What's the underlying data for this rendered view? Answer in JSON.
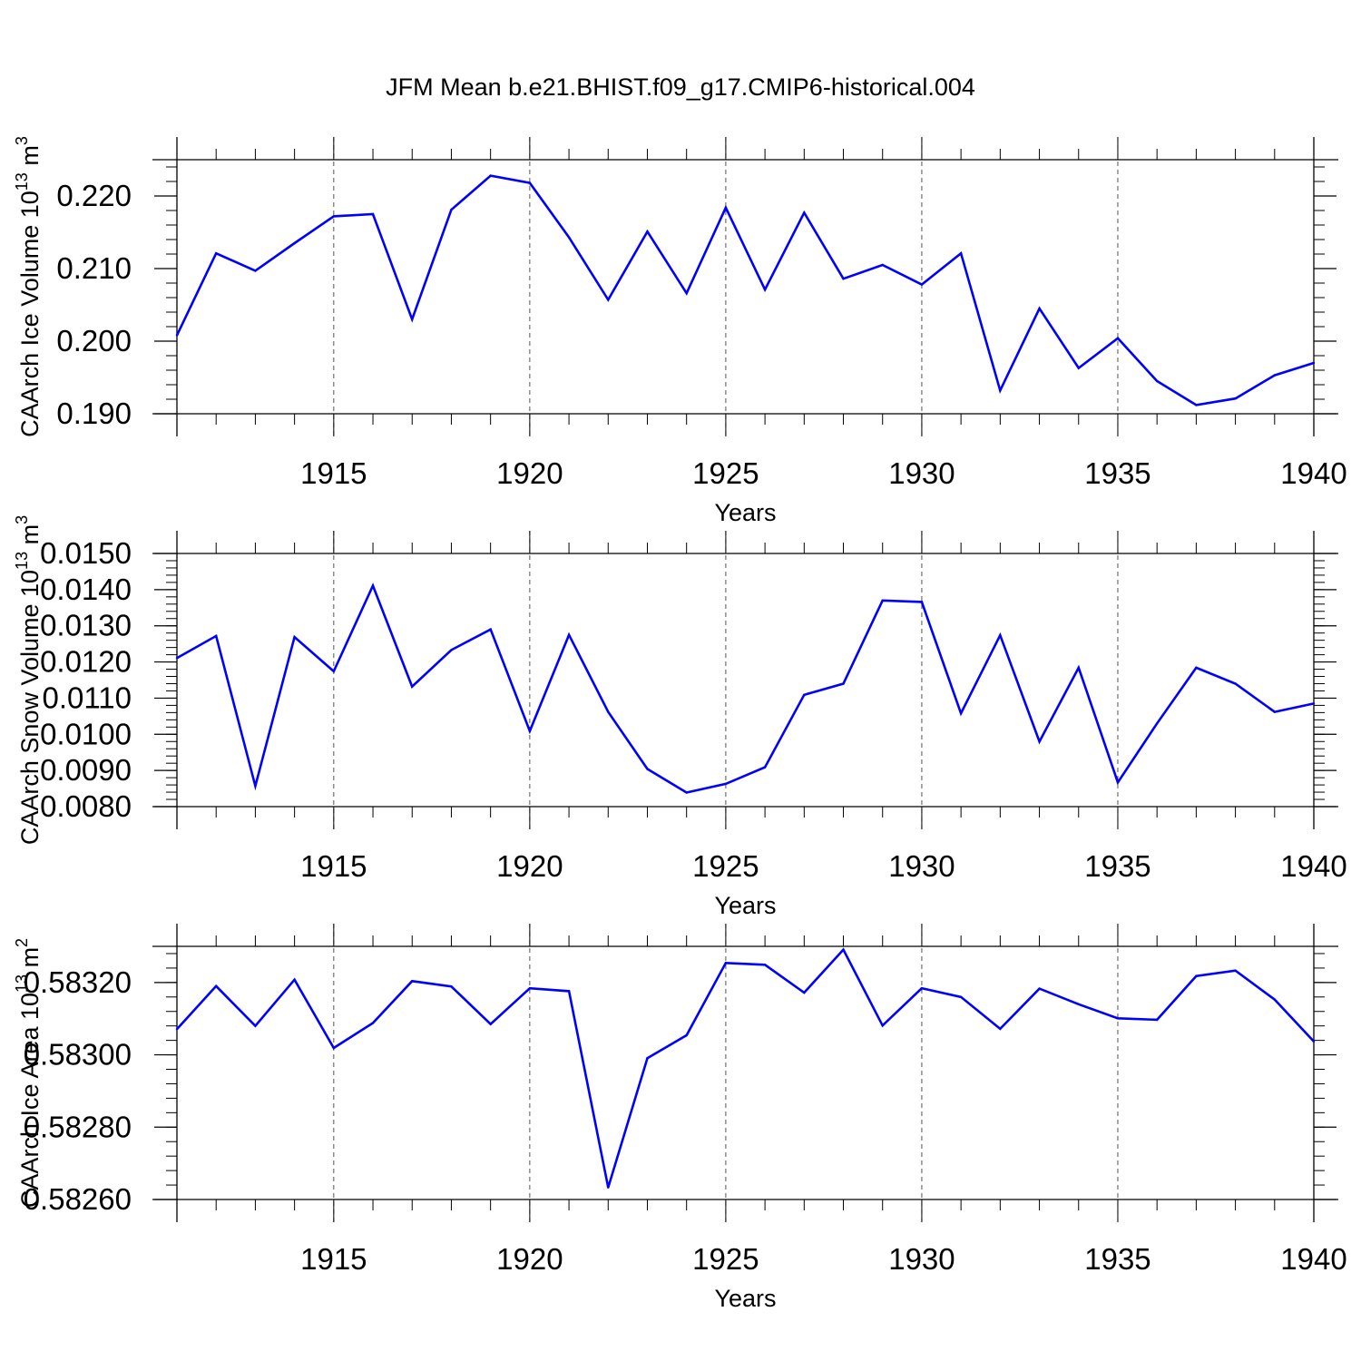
{
  "title": "JFM Mean b.e21.BHIST.f09_g17.CMIP6-historical.004",
  "line_color": "#0000ff",
  "chart_data": [
    {
      "type": "line",
      "title": "JFM Mean b.e21.BHIST.f09_g17.CMIP6-historical.004",
      "xlabel": "Years",
      "ylabel": "CAArch Ice Volume 10",
      "ylabel_sup": "13",
      "ylabel_unit": "m",
      "ylabel_unit_sup": "3",
      "xlim": [
        1911,
        1940
      ],
      "ylim": [
        0.19,
        0.225
      ],
      "xticks": [
        1915,
        1920,
        1925,
        1930,
        1935,
        1940
      ],
      "yticks": [
        0.19,
        0.2,
        0.21,
        0.22
      ],
      "ytick_labels": [
        "0.190",
        "0.200",
        "0.210",
        "0.220"
      ],
      "x": [
        1911,
        1912,
        1913,
        1914,
        1915,
        1916,
        1917,
        1918,
        1919,
        1920,
        1921,
        1922,
        1923,
        1924,
        1925,
        1926,
        1927,
        1928,
        1929,
        1930,
        1931,
        1932,
        1933,
        1934,
        1935,
        1936,
        1937,
        1938,
        1939,
        1940
      ],
      "values": [
        0.2008,
        0.2121,
        0.2097,
        0.2135,
        0.2172,
        0.2175,
        0.203,
        0.2181,
        0.2228,
        0.2218,
        0.2143,
        0.2057,
        0.2151,
        0.2066,
        0.2184,
        0.2071,
        0.2177,
        0.2086,
        0.2105,
        0.2078,
        0.2121,
        0.1932,
        0.2045,
        0.1963,
        0.2004,
        0.1945,
        0.1912,
        0.1921,
        0.1953,
        0.197
      ]
    },
    {
      "type": "line",
      "xlabel": "Years",
      "ylabel": "CAArch Snow Volume 10",
      "ylabel_sup": "13",
      "ylabel_unit": "m",
      "ylabel_unit_sup": "3",
      "xlim": [
        1911,
        1940
      ],
      "ylim": [
        0.008,
        0.015
      ],
      "xticks": [
        1915,
        1920,
        1925,
        1930,
        1935,
        1940
      ],
      "yticks": [
        0.008,
        0.009,
        0.01,
        0.011,
        0.012,
        0.013,
        0.014,
        0.015
      ],
      "ytick_labels": [
        "0.0080",
        "0.0090",
        "0.0100",
        "0.0110",
        "0.0120",
        "0.0130",
        "0.0140",
        "0.0150"
      ],
      "x": [
        1911,
        1912,
        1913,
        1914,
        1915,
        1916,
        1917,
        1918,
        1919,
        1920,
        1921,
        1922,
        1923,
        1924,
        1925,
        1926,
        1927,
        1928,
        1929,
        1930,
        1931,
        1932,
        1933,
        1934,
        1935,
        1936,
        1937,
        1938,
        1939,
        1940
      ],
      "values": [
        0.01211,
        0.01272,
        0.00857,
        0.01269,
        0.01174,
        0.01411,
        0.01132,
        0.01233,
        0.0129,
        0.01009,
        0.01275,
        0.01062,
        0.00904,
        0.00839,
        0.00863,
        0.00909,
        0.01109,
        0.0114,
        0.0137,
        0.01366,
        0.01058,
        0.01274,
        0.0098,
        0.01184,
        0.00867,
        0.0103,
        0.01184,
        0.0114,
        0.01062,
        0.01085
      ]
    },
    {
      "type": "line",
      "xlabel": "Years",
      "ylabel": "CAArch Ice Area 10",
      "ylabel_sup": "13",
      "ylabel_unit": "m",
      "ylabel_unit_sup": "2",
      "xlim": [
        1911,
        1940
      ],
      "ylim": [
        0.5826,
        0.5833
      ],
      "xticks": [
        1915,
        1920,
        1925,
        1930,
        1935,
        1940
      ],
      "yticks": [
        0.5826,
        0.5828,
        0.583,
        0.5832
      ],
      "ytick_labels": [
        "0.58260",
        "0.58280",
        "0.58300",
        "0.58320"
      ],
      "x": [
        1911,
        1912,
        1913,
        1914,
        1915,
        1916,
        1917,
        1918,
        1919,
        1920,
        1921,
        1922,
        1923,
        1924,
        1925,
        1926,
        1927,
        1928,
        1929,
        1930,
        1931,
        1932,
        1933,
        1934,
        1935,
        1936,
        1937,
        1938,
        1939,
        1940
      ],
      "values": [
        0.583071,
        0.58319,
        0.58308,
        0.583208,
        0.583019,
        0.583088,
        0.583204,
        0.583189,
        0.583085,
        0.583184,
        0.583176,
        0.582633,
        0.582991,
        0.583054,
        0.583254,
        0.583249,
        0.583172,
        0.583291,
        0.583081,
        0.583184,
        0.58316,
        0.583072,
        0.583183,
        0.58314,
        0.583101,
        0.583097,
        0.583218,
        0.583233,
        0.583153,
        0.583037
      ]
    }
  ]
}
